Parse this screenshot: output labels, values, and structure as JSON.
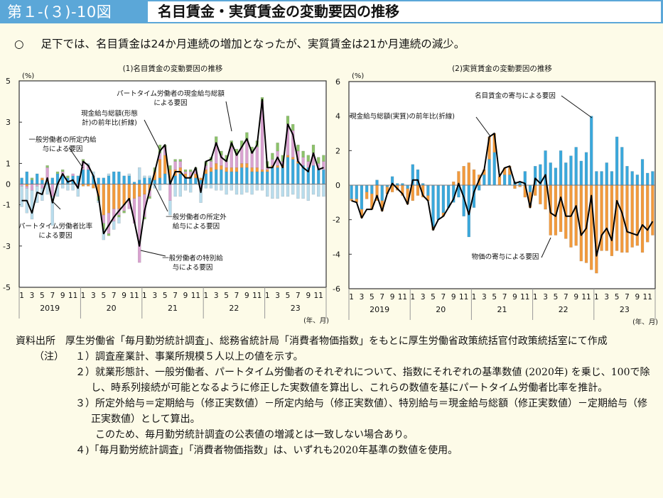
{
  "header": {
    "figure_number": "第１-(３)-10図",
    "title": "名目賃金・実質賃金の変動要因の推移"
  },
  "summary": {
    "bullet": "○",
    "text": "足下では、名目賃金は24か月連続の増加となったが、実質賃金は21か月連続の減少。"
  },
  "colors": {
    "header_bg": "#5ba7d8",
    "page_bg": "#fdfbe8",
    "scheduled_blue": "#3aa8dc",
    "parttime_ratio_lightblue": "#b8dcec",
    "overtime_orange": "#f29a3c",
    "special_pink": "#d9a2d0",
    "parttime_cash_green": "#8cc26a",
    "line": "#000000"
  },
  "chart_data": [
    {
      "type": "bar",
      "subtype": "stacked-bar-with-line",
      "title": "(1)名目賃金の変動要因の推移",
      "ylabel": "(%)",
      "xlabel": "(年、月)",
      "ylim": [
        -5,
        5
      ],
      "yticks": [
        5,
        3,
        1,
        0,
        -1,
        -3,
        -5
      ],
      "month_ticks": [
        "1",
        "3",
        "5",
        "7",
        "9",
        "11"
      ],
      "years": [
        "2019",
        "20",
        "21",
        "22",
        "23"
      ],
      "annotations": [
        "パートタイム労働者の現金給与総額による要因",
        "現金給与総額(形態計)の前年比(折線)",
        "一般労働者の所定内給与による要因",
        "パートタイム労働者比率による要因",
        "一般労働者の所定外給与による要因",
        "一般労働者の特別給与による要因"
      ],
      "line": {
        "name": "現金給与総額(形態計)の前年比",
        "values": [
          -0.8,
          -0.8,
          -1.4,
          -0.4,
          -0.5,
          0.3,
          -0.9,
          0.0,
          0.5,
          0.1,
          0.2,
          -0.2,
          1.1,
          0.9,
          0.4,
          -0.6,
          -2.4,
          -2.0,
          -1.6,
          -1.3,
          -1.0,
          -0.7,
          -1.8,
          -3.0,
          -1.3,
          -0.3,
          0.6,
          1.6,
          1.9,
          0.0,
          0.6,
          0.6,
          0.3,
          0.3,
          0.8,
          -0.4,
          1.1,
          1.2,
          2.0,
          1.3,
          1.1,
          2.0,
          1.4,
          1.8,
          2.2,
          1.5,
          1.9,
          4.1,
          0.8,
          0.8,
          1.3,
          0.8,
          2.9,
          2.4,
          1.1,
          0.8,
          0.6,
          1.5,
          0.7,
          0.8
        ]
      },
      "series": [
        {
          "name": "一般労働者の所定内給与による要因",
          "color_key": "scheduled_blue",
          "values": [
            0.3,
            0.6,
            0.2,
            0.5,
            0.2,
            0.1,
            0.3,
            0.5,
            0.4,
            0.3,
            0.4,
            0.4,
            0.7,
            0.7,
            0.4,
            0.3,
            0.3,
            0.4,
            0.6,
            0.6,
            0.4,
            0.4,
            0.1,
            0.2,
            0.3,
            0.3,
            0.2,
            0.3,
            0.5,
            0.2,
            0.4,
            0.5,
            0.3,
            0.3,
            0.3,
            0.2,
            0.5,
            0.6,
            0.7,
            0.7,
            0.6,
            0.6,
            0.6,
            0.8,
            0.8,
            0.6,
            0.6,
            0.6,
            0.6,
            0.8,
            0.8,
            0.8,
            1.3,
            1.2,
            1.0,
            0.9,
            0.8,
            0.9,
            0.7,
            0.7
          ]
        },
        {
          "name": "一般労働者の所定外給与による要因",
          "color_key": "overtime_orange",
          "values": [
            0.0,
            -0.1,
            0.0,
            0.0,
            0.1,
            0.0,
            0.0,
            0.0,
            0.0,
            0.0,
            0.0,
            0.0,
            -0.1,
            -0.1,
            -0.2,
            -0.6,
            -1.5,
            -1.4,
            -1.2,
            -1.2,
            -1.0,
            -0.8,
            -0.7,
            -0.6,
            -0.5,
            -0.3,
            0.4,
            0.9,
            0.9,
            0.5,
            0.3,
            0.3,
            0.2,
            0.1,
            0.2,
            0.1,
            0.2,
            0.2,
            0.3,
            0.2,
            0.2,
            0.2,
            0.2,
            0.2,
            0.2,
            0.2,
            0.2,
            0.1,
            0.1,
            0.1,
            0.1,
            0.1,
            0.1,
            0.1,
            0.1,
            0.0,
            0.0,
            0.0,
            0.0,
            0.0
          ]
        },
        {
          "name": "一般労働者の特別給与による要因",
          "color_key": "special_pink",
          "values": [
            -0.1,
            -0.1,
            -0.3,
            -0.1,
            -0.2,
            0.7,
            -0.6,
            0.0,
            0.2,
            0.0,
            0.1,
            -0.1,
            0.4,
            0.2,
            0.0,
            0.0,
            -0.4,
            -1.0,
            -0.6,
            -0.3,
            -0.3,
            -0.4,
            -1.2,
            -3.2,
            -1.1,
            -0.3,
            0.0,
            0.3,
            0.4,
            -0.8,
            0.4,
            0.3,
            0.1,
            0.2,
            0.2,
            -0.3,
            0.2,
            0.3,
            1.0,
            0.5,
            0.3,
            1.0,
            0.6,
            0.8,
            1.1,
            0.7,
            1.0,
            3.3,
            0.1,
            0.3,
            0.7,
            0.2,
            1.5,
            1.3,
            0.5,
            0.4,
            0.3,
            0.6,
            0.3,
            0.4
          ]
        },
        {
          "name": "パートタイム労働者の現金給与総額による要因",
          "color_key": "parttime_cash_green",
          "values": [
            0.0,
            0.0,
            0.1,
            0.0,
            0.0,
            0.1,
            0.0,
            0.1,
            0.1,
            0.1,
            0.0,
            0.0,
            0.1,
            0.0,
            0.0,
            -0.2,
            -0.3,
            -0.1,
            0.0,
            -0.1,
            -0.1,
            0.0,
            0.0,
            0.0,
            -0.1,
            -0.1,
            0.2,
            0.4,
            0.1,
            0.2,
            0.1,
            0.1,
            0.1,
            0.1,
            0.1,
            0.0,
            0.2,
            0.2,
            0.3,
            0.2,
            0.3,
            0.3,
            0.3,
            0.3,
            0.4,
            0.3,
            0.3,
            0.2,
            0.3,
            0.3,
            0.4,
            0.3,
            0.4,
            0.3,
            0.3,
            0.3,
            0.3,
            0.4,
            0.3,
            0.3
          ]
        },
        {
          "name": "パートタイム労働者比率による要因",
          "color_key": "parttime_ratio_lightblue",
          "values": [
            -1.0,
            -1.2,
            -1.4,
            -0.8,
            -0.6,
            -0.5,
            -1.4,
            -0.6,
            -0.2,
            -0.3,
            -0.3,
            -0.5,
            0.0,
            0.1,
            0.2,
            -0.1,
            -0.5,
            0.1,
            -0.4,
            -0.3,
            0.0,
            0.1,
            0.0,
            0.6,
            0.1,
            0.1,
            -0.2,
            -0.3,
            0.0,
            -0.7,
            -0.6,
            -0.6,
            -0.3,
            -0.4,
            0.0,
            -0.6,
            -0.2,
            -0.2,
            -0.3,
            -0.3,
            -0.5,
            -0.3,
            -0.5,
            -0.5,
            -0.4,
            -0.5,
            -0.3,
            -0.3,
            -0.6,
            -0.7,
            -0.7,
            -0.6,
            -0.6,
            -0.5,
            -0.7,
            -0.7,
            -0.8,
            -0.5,
            -0.6,
            -0.6
          ]
        }
      ]
    },
    {
      "type": "bar",
      "subtype": "stacked-bar-with-line",
      "title": "(2)実質賃金の変動要因の推移",
      "ylabel": "(%)",
      "xlabel": "(年、月)",
      "ylim": [
        -6,
        6
      ],
      "yticks": [
        6,
        4,
        2,
        0,
        -2,
        -4,
        -6
      ],
      "month_ticks": [
        "1",
        "3",
        "5",
        "7",
        "9",
        "11"
      ],
      "years": [
        "2019",
        "20",
        "21",
        "22",
        "23"
      ],
      "annotations": [
        "名目賃金の寄与による要因",
        "現金給与総額(実質)の前年比(折線)",
        "物価の寄与による要因"
      ],
      "line": {
        "name": "現金給与総額(実質)の前年比",
        "values": [
          -0.9,
          -1.0,
          -1.9,
          -1.4,
          -1.4,
          -0.6,
          -1.5,
          -0.5,
          0.1,
          -0.2,
          -0.5,
          -1.1,
          0.3,
          0.3,
          -0.6,
          -0.9,
          -2.6,
          -2.0,
          -1.8,
          -1.3,
          -0.8,
          0.1,
          -0.7,
          -1.7,
          -0.4,
          0.3,
          0.9,
          2.8,
          3.0,
          0.5,
          1.0,
          1.1,
          0.1,
          0.2,
          0.1,
          -1.3,
          0.4,
          0.1,
          0.6,
          -1.6,
          -1.8,
          -0.7,
          -1.8,
          -1.8,
          -1.2,
          -2.9,
          -2.5,
          -0.6,
          -4.1,
          -2.9,
          -2.5,
          -3.2,
          -0.9,
          -1.6,
          -2.7,
          -2.8,
          -2.9,
          -2.3,
          -2.6,
          -2.1
        ]
      },
      "series": [
        {
          "name": "名目賃金の寄与による要因",
          "color_key": "scheduled_blue",
          "values": [
            -0.8,
            -0.8,
            -1.4,
            -0.4,
            -0.5,
            0.3,
            -0.9,
            -0.1,
            0.5,
            0.1,
            0.1,
            -0.2,
            1.2,
            0.9,
            0.1,
            -0.6,
            -2.4,
            -2.0,
            -1.6,
            -1.3,
            -1.0,
            -0.7,
            -1.8,
            -3.0,
            -1.3,
            -0.3,
            0.6,
            1.5,
            1.9,
            0.0,
            0.6,
            0.6,
            0.2,
            0.2,
            0.8,
            -0.4,
            1.1,
            1.2,
            2.0,
            1.3,
            1.0,
            2.0,
            1.3,
            1.7,
            2.2,
            1.4,
            1.9,
            4.0,
            0.8,
            0.8,
            1.3,
            0.8,
            2.8,
            2.2,
            1.1,
            0.8,
            0.6,
            1.5,
            0.7,
            0.8
          ]
        },
        {
          "name": "物価の寄与による要因",
          "color_key": "overtime_orange",
          "values": [
            -0.1,
            -0.2,
            -0.5,
            -0.4,
            -0.9,
            -0.9,
            -0.6,
            -0.4,
            -0.4,
            -0.3,
            -0.6,
            -0.9,
            -0.9,
            -0.6,
            -0.7,
            -0.3,
            -0.2,
            0.0,
            -0.2,
            0.0,
            0.2,
            0.8,
            1.1,
            1.3,
            0.9,
            0.6,
            0.3,
            1.3,
            1.1,
            0.5,
            0.4,
            0.5,
            -0.2,
            -0.1,
            -0.7,
            -0.9,
            -0.6,
            -1.1,
            -1.4,
            -2.9,
            -2.9,
            -2.7,
            -3.1,
            -3.6,
            -3.5,
            -4.4,
            -4.5,
            -4.9,
            -5.1,
            -3.8,
            -3.8,
            -4.1,
            -3.8,
            -3.9,
            -3.9,
            -3.6,
            -3.5,
            -3.9,
            -3.3,
            -2.9
          ]
        }
      ]
    }
  ],
  "notes": {
    "source_label": "資料出所",
    "source_text": "厚生労働省「毎月勤労統計調査」、総務省統計局「消費者物価指数」をもとに厚生労働省政策統括官付政策統括室にて作成",
    "note_label": "（注）",
    "items": [
      "１）調査産業計、事業所規模５人以上の値を示す。",
      "２）就業形態計、一般労働者、パートタイム労働者のそれぞれについて、指数にそれぞれの基準数値 (2020年) を乗じ、100で除し、時系列接続が可能となるように修正した実数値を算出し、これらの数値を基にパートタイム労働者比率を推計。",
      "３）所定外給与＝定期給与（修正実数値）－所定内給与（修正実数値）、特別給与＝現金給与総額（修正実数値）－定期給与（修正実数値）として算出。"
    ],
    "item3_sub": "このため、毎月勤労統計調査の公表値の増減とは一致しない場合あり。",
    "item4": "４)「毎月勤労統計調査」「消費者物価指数」は、いずれも2020年基準の数値を使用。"
  }
}
